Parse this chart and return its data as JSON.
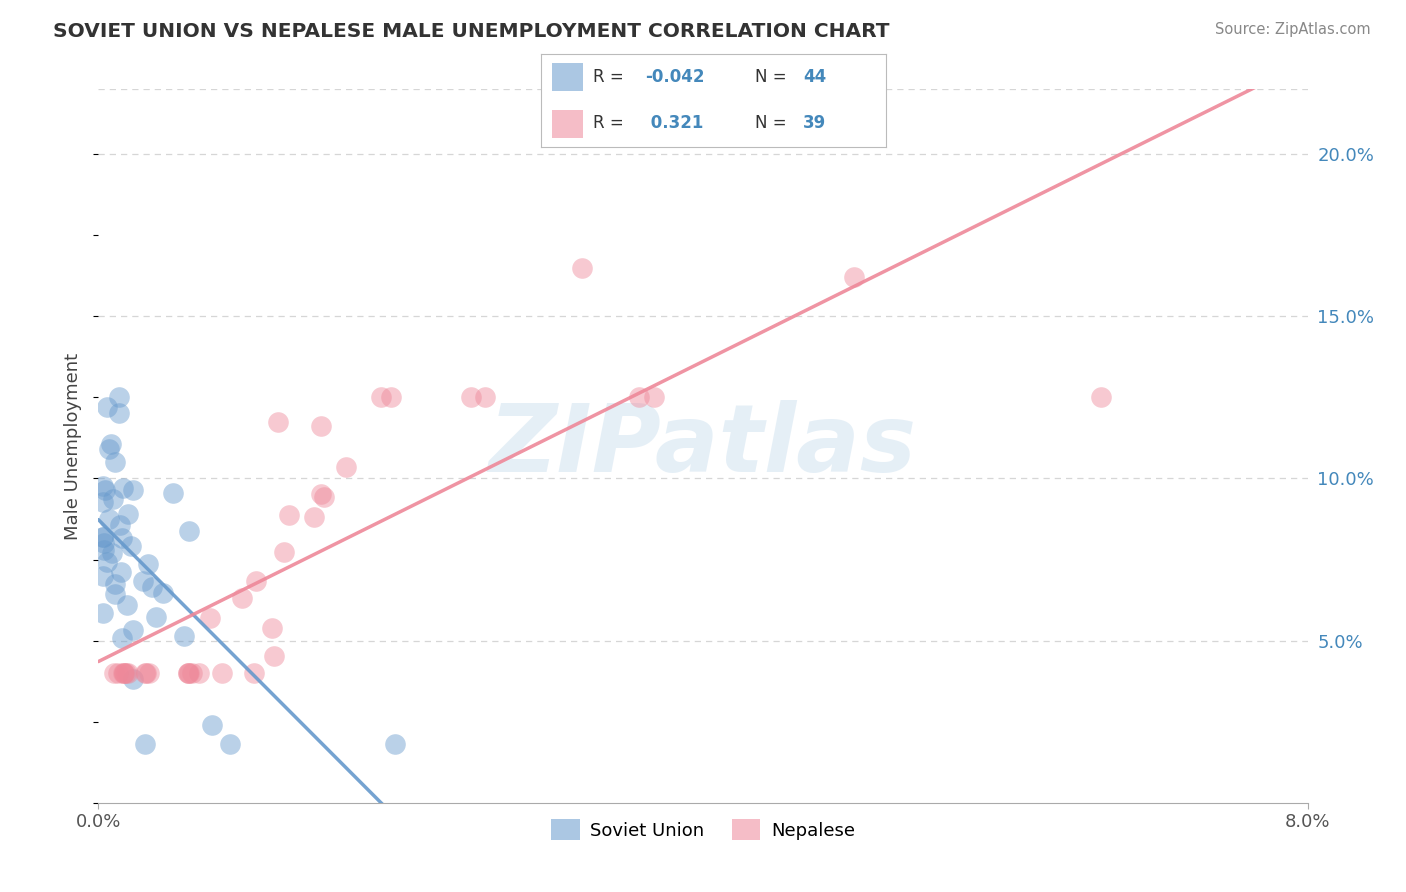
{
  "title": "SOVIET UNION VS NEPALESE MALE UNEMPLOYMENT CORRELATION CHART",
  "source": "Source: ZipAtlas.com",
  "ylabel": "Male Unemployment",
  "soviet_color": "#6699cc",
  "nepalese_color": "#ee8899",
  "soviet_R": -0.042,
  "soviet_N": 44,
  "nepalese_R": 0.321,
  "nepalese_N": 39,
  "watermark_text": "ZIPatlas",
  "background_color": "#ffffff",
  "grid_color": "#cccccc",
  "title_color": "#333333",
  "axis_color": "#4488bb",
  "xlim": [
    0.0,
    0.08
  ],
  "ylim": [
    0.0,
    0.22
  ],
  "right_yticks": [
    0.05,
    0.1,
    0.15,
    0.2
  ],
  "right_yticklabels": [
    "5.0%",
    "10.0%",
    "15.0%",
    "20.0%"
  ],
  "legend_r1": "R = -0.042",
  "legend_n1": "N = 44",
  "legend_r2": "R =  0.321",
  "legend_n2": "N = 39"
}
